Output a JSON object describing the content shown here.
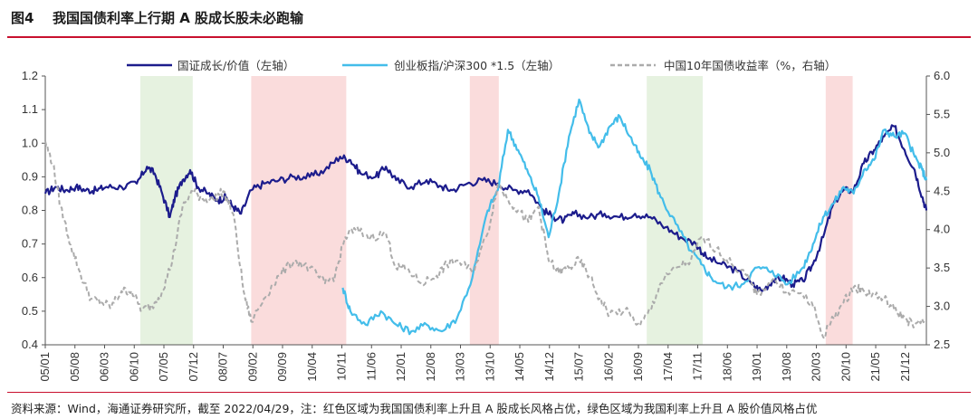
{
  "figure": {
    "number": "图4",
    "title": "我国国债利率上行期 A 股成长股未必跑输",
    "source_note": "资料来源：Wind，海通证券研究所，截至 2022/04/29，注：红色区域为我国国债利率上升且 A 股成长风格占优，绿色区域为我国利率上升且 A 股价值风格占优"
  },
  "colors": {
    "growth_value": "#1c1c8c",
    "chinext_hs300": "#43bdea",
    "cgb10y": "#ababab",
    "red_shade": "#fadcdc",
    "green_shade": "#e6f2e0",
    "rule": "#c8102e"
  },
  "chart_data": {
    "type": "line",
    "legend": [
      {
        "key": "growth_value",
        "label": "国证成长/价值（左轴）"
      },
      {
        "key": "chinext_hs300",
        "label": "创业板指/沪深300 *1.5（左轴）"
      },
      {
        "key": "cgb10y",
        "label": "中国10年国债收益率（%，右轴）"
      }
    ],
    "x_ticks": [
      "05/01",
      "05/08",
      "06/03",
      "06/10",
      "07/05",
      "07/12",
      "08/07",
      "09/02",
      "09/09",
      "10/04",
      "10/11",
      "11/06",
      "12/01",
      "12/08",
      "13/03",
      "13/10",
      "14/05",
      "14/12",
      "15/07",
      "16/02",
      "16/09",
      "17/04",
      "17/11",
      "18/06",
      "19/01",
      "19/08",
      "20/03",
      "20/10",
      "21/05",
      "21/12"
    ],
    "x_range": [
      2005.0,
      2022.33
    ],
    "y_left": {
      "range": [
        0.4,
        1.2
      ],
      "ticks": [
        "0.4",
        "0.5",
        "0.6",
        "0.7",
        "0.8",
        "0.9",
        "1.0",
        "1.1",
        "1.2"
      ]
    },
    "y_right": {
      "range": [
        2.5,
        6.0
      ],
      "ticks": [
        "2.5",
        "3.0",
        "3.5",
        "4.0",
        "4.5",
        "5.0",
        "5.5",
        "6.0"
      ]
    },
    "shaded_regions": [
      {
        "type": "green",
        "start": 2006.87,
        "end": 2007.9
      },
      {
        "type": "red",
        "start": 2009.05,
        "end": 2010.92
      },
      {
        "type": "red",
        "start": 2013.35,
        "end": 2013.92
      },
      {
        "type": "green",
        "start": 2016.83,
        "end": 2017.93
      },
      {
        "type": "red",
        "start": 2020.35,
        "end": 2020.88
      }
    ],
    "series": [
      {
        "name": "国证成长/价值（左轴）",
        "axis": "left",
        "key": "growth_value",
        "points": [
          [
            2005.0,
            0.85
          ],
          [
            2005.2,
            0.87
          ],
          [
            2005.4,
            0.86
          ],
          [
            2005.6,
            0.87
          ],
          [
            2005.8,
            0.86
          ],
          [
            2006.0,
            0.86
          ],
          [
            2006.2,
            0.87
          ],
          [
            2006.5,
            0.87
          ],
          [
            2006.8,
            0.88
          ],
          [
            2007.0,
            0.93
          ],
          [
            2007.15,
            0.91
          ],
          [
            2007.3,
            0.85
          ],
          [
            2007.45,
            0.78
          ],
          [
            2007.55,
            0.84
          ],
          [
            2007.7,
            0.89
          ],
          [
            2007.85,
            0.92
          ],
          [
            2008.0,
            0.87
          ],
          [
            2008.2,
            0.85
          ],
          [
            2008.4,
            0.83
          ],
          [
            2008.55,
            0.84
          ],
          [
            2008.7,
            0.81
          ],
          [
            2008.85,
            0.79
          ],
          [
            2009.05,
            0.86
          ],
          [
            2009.3,
            0.88
          ],
          [
            2009.6,
            0.89
          ],
          [
            2009.9,
            0.9
          ],
          [
            2010.2,
            0.9
          ],
          [
            2010.5,
            0.92
          ],
          [
            2010.8,
            0.96
          ],
          [
            2011.0,
            0.95
          ],
          [
            2011.2,
            0.91
          ],
          [
            2011.5,
            0.9
          ],
          [
            2011.7,
            0.93
          ],
          [
            2011.9,
            0.89
          ],
          [
            2012.2,
            0.87
          ],
          [
            2012.5,
            0.89
          ],
          [
            2012.8,
            0.87
          ],
          [
            2013.0,
            0.86
          ],
          [
            2013.3,
            0.88
          ],
          [
            2013.6,
            0.89
          ],
          [
            2013.9,
            0.88
          ],
          [
            2014.2,
            0.86
          ],
          [
            2014.5,
            0.86
          ],
          [
            2014.8,
            0.8
          ],
          [
            2015.0,
            0.78
          ],
          [
            2015.2,
            0.77
          ],
          [
            2015.4,
            0.79
          ],
          [
            2015.7,
            0.78
          ],
          [
            2016.0,
            0.79
          ],
          [
            2016.3,
            0.78
          ],
          [
            2016.6,
            0.79
          ],
          [
            2016.9,
            0.78
          ],
          [
            2017.2,
            0.75
          ],
          [
            2017.5,
            0.72
          ],
          [
            2017.8,
            0.7
          ],
          [
            2018.0,
            0.66
          ],
          [
            2018.3,
            0.64
          ],
          [
            2018.6,
            0.62
          ],
          [
            2018.9,
            0.58
          ],
          [
            2019.1,
            0.56
          ],
          [
            2019.3,
            0.59
          ],
          [
            2019.5,
            0.6
          ],
          [
            2019.7,
            0.58
          ],
          [
            2019.9,
            0.59
          ],
          [
            2020.1,
            0.64
          ],
          [
            2020.3,
            0.72
          ],
          [
            2020.5,
            0.82
          ],
          [
            2020.7,
            0.86
          ],
          [
            2020.9,
            0.86
          ],
          [
            2021.1,
            0.94
          ],
          [
            2021.3,
            0.98
          ],
          [
            2021.5,
            1.02
          ],
          [
            2021.7,
            1.05
          ],
          [
            2021.9,
            0.98
          ],
          [
            2022.1,
            0.92
          ],
          [
            2022.25,
            0.84
          ],
          [
            2022.33,
            0.8
          ]
        ]
      },
      {
        "name": "创业板指/沪深300 *1.5（左轴）",
        "axis": "left",
        "key": "chinext_hs300",
        "points": [
          [
            2010.85,
            0.57
          ],
          [
            2011.0,
            0.5
          ],
          [
            2011.3,
            0.46
          ],
          [
            2011.6,
            0.5
          ],
          [
            2011.9,
            0.46
          ],
          [
            2012.2,
            0.44
          ],
          [
            2012.5,
            0.46
          ],
          [
            2012.8,
            0.44
          ],
          [
            2013.1,
            0.48
          ],
          [
            2013.4,
            0.6
          ],
          [
            2013.7,
            0.8
          ],
          [
            2013.9,
            0.86
          ],
          [
            2014.1,
            1.04
          ],
          [
            2014.3,
            0.98
          ],
          [
            2014.5,
            0.91
          ],
          [
            2014.7,
            0.84
          ],
          [
            2014.9,
            0.72
          ],
          [
            2015.1,
            0.85
          ],
          [
            2015.3,
            1.02
          ],
          [
            2015.5,
            1.13
          ],
          [
            2015.7,
            1.03
          ],
          [
            2015.9,
            0.99
          ],
          [
            2016.1,
            1.05
          ],
          [
            2016.3,
            1.08
          ],
          [
            2016.5,
            1.02
          ],
          [
            2016.7,
            0.96
          ],
          [
            2016.9,
            0.92
          ],
          [
            2017.1,
            0.84
          ],
          [
            2017.4,
            0.76
          ],
          [
            2017.7,
            0.68
          ],
          [
            2017.9,
            0.64
          ],
          [
            2018.1,
            0.6
          ],
          [
            2018.4,
            0.57
          ],
          [
            2018.7,
            0.58
          ],
          [
            2019.0,
            0.63
          ],
          [
            2019.3,
            0.62
          ],
          [
            2019.6,
            0.58
          ],
          [
            2019.9,
            0.63
          ],
          [
            2020.1,
            0.7
          ],
          [
            2020.3,
            0.78
          ],
          [
            2020.5,
            0.82
          ],
          [
            2020.7,
            0.87
          ],
          [
            2020.9,
            0.85
          ],
          [
            2021.1,
            0.92
          ],
          [
            2021.3,
            0.95
          ],
          [
            2021.5,
            1.04
          ],
          [
            2021.7,
            1.02
          ],
          [
            2021.9,
            1.03
          ],
          [
            2022.1,
            0.96
          ],
          [
            2022.25,
            0.92
          ],
          [
            2022.33,
            0.89
          ]
        ]
      },
      {
        "name": "中国10年国债收益率（%，右轴）",
        "axis": "right",
        "key": "cgb10y",
        "points": [
          [
            2005.0,
            5.15
          ],
          [
            2005.15,
            4.85
          ],
          [
            2005.3,
            4.3
          ],
          [
            2005.5,
            3.8
          ],
          [
            2005.7,
            3.4
          ],
          [
            2005.9,
            3.1
          ],
          [
            2006.1,
            3.05
          ],
          [
            2006.3,
            3.0
          ],
          [
            2006.5,
            3.2
          ],
          [
            2006.7,
            3.2
          ],
          [
            2006.9,
            2.95
          ],
          [
            2007.1,
            3.0
          ],
          [
            2007.3,
            3.2
          ],
          [
            2007.5,
            3.6
          ],
          [
            2007.7,
            4.3
          ],
          [
            2007.9,
            4.5
          ],
          [
            2008.1,
            4.4
          ],
          [
            2008.3,
            4.4
          ],
          [
            2008.5,
            4.5
          ],
          [
            2008.7,
            4.2
          ],
          [
            2008.9,
            3.2
          ],
          [
            2009.05,
            2.8
          ],
          [
            2009.3,
            3.1
          ],
          [
            2009.6,
            3.4
          ],
          [
            2009.9,
            3.6
          ],
          [
            2010.2,
            3.5
          ],
          [
            2010.5,
            3.3
          ],
          [
            2010.7,
            3.4
          ],
          [
            2010.9,
            3.9
          ],
          [
            2011.1,
            4.0
          ],
          [
            2011.4,
            3.9
          ],
          [
            2011.7,
            3.95
          ],
          [
            2011.9,
            3.5
          ],
          [
            2012.1,
            3.5
          ],
          [
            2012.4,
            3.3
          ],
          [
            2012.7,
            3.4
          ],
          [
            2012.9,
            3.55
          ],
          [
            2013.1,
            3.6
          ],
          [
            2013.4,
            3.45
          ],
          [
            2013.7,
            3.95
          ],
          [
            2013.9,
            4.6
          ],
          [
            2014.1,
            4.4
          ],
          [
            2014.3,
            4.25
          ],
          [
            2014.5,
            4.1
          ],
          [
            2014.7,
            4.3
          ],
          [
            2014.9,
            3.6
          ],
          [
            2015.1,
            3.45
          ],
          [
            2015.3,
            3.5
          ],
          [
            2015.5,
            3.6
          ],
          [
            2015.7,
            3.4
          ],
          [
            2015.9,
            3.1
          ],
          [
            2016.1,
            2.9
          ],
          [
            2016.4,
            2.95
          ],
          [
            2016.7,
            2.75
          ],
          [
            2016.9,
            2.95
          ],
          [
            2017.1,
            3.3
          ],
          [
            2017.4,
            3.5
          ],
          [
            2017.7,
            3.6
          ],
          [
            2017.9,
            3.9
          ],
          [
            2018.2,
            3.75
          ],
          [
            2018.5,
            3.55
          ],
          [
            2018.8,
            3.4
          ],
          [
            2019.0,
            3.15
          ],
          [
            2019.3,
            3.35
          ],
          [
            2019.6,
            3.2
          ],
          [
            2019.9,
            3.15
          ],
          [
            2020.1,
            3.0
          ],
          [
            2020.3,
            2.6
          ],
          [
            2020.5,
            2.85
          ],
          [
            2020.7,
            3.05
          ],
          [
            2020.9,
            3.25
          ],
          [
            2021.1,
            3.2
          ],
          [
            2021.3,
            3.15
          ],
          [
            2021.5,
            3.1
          ],
          [
            2021.7,
            2.95
          ],
          [
            2021.9,
            2.85
          ],
          [
            2022.1,
            2.75
          ],
          [
            2022.33,
            2.82
          ]
        ]
      }
    ]
  }
}
